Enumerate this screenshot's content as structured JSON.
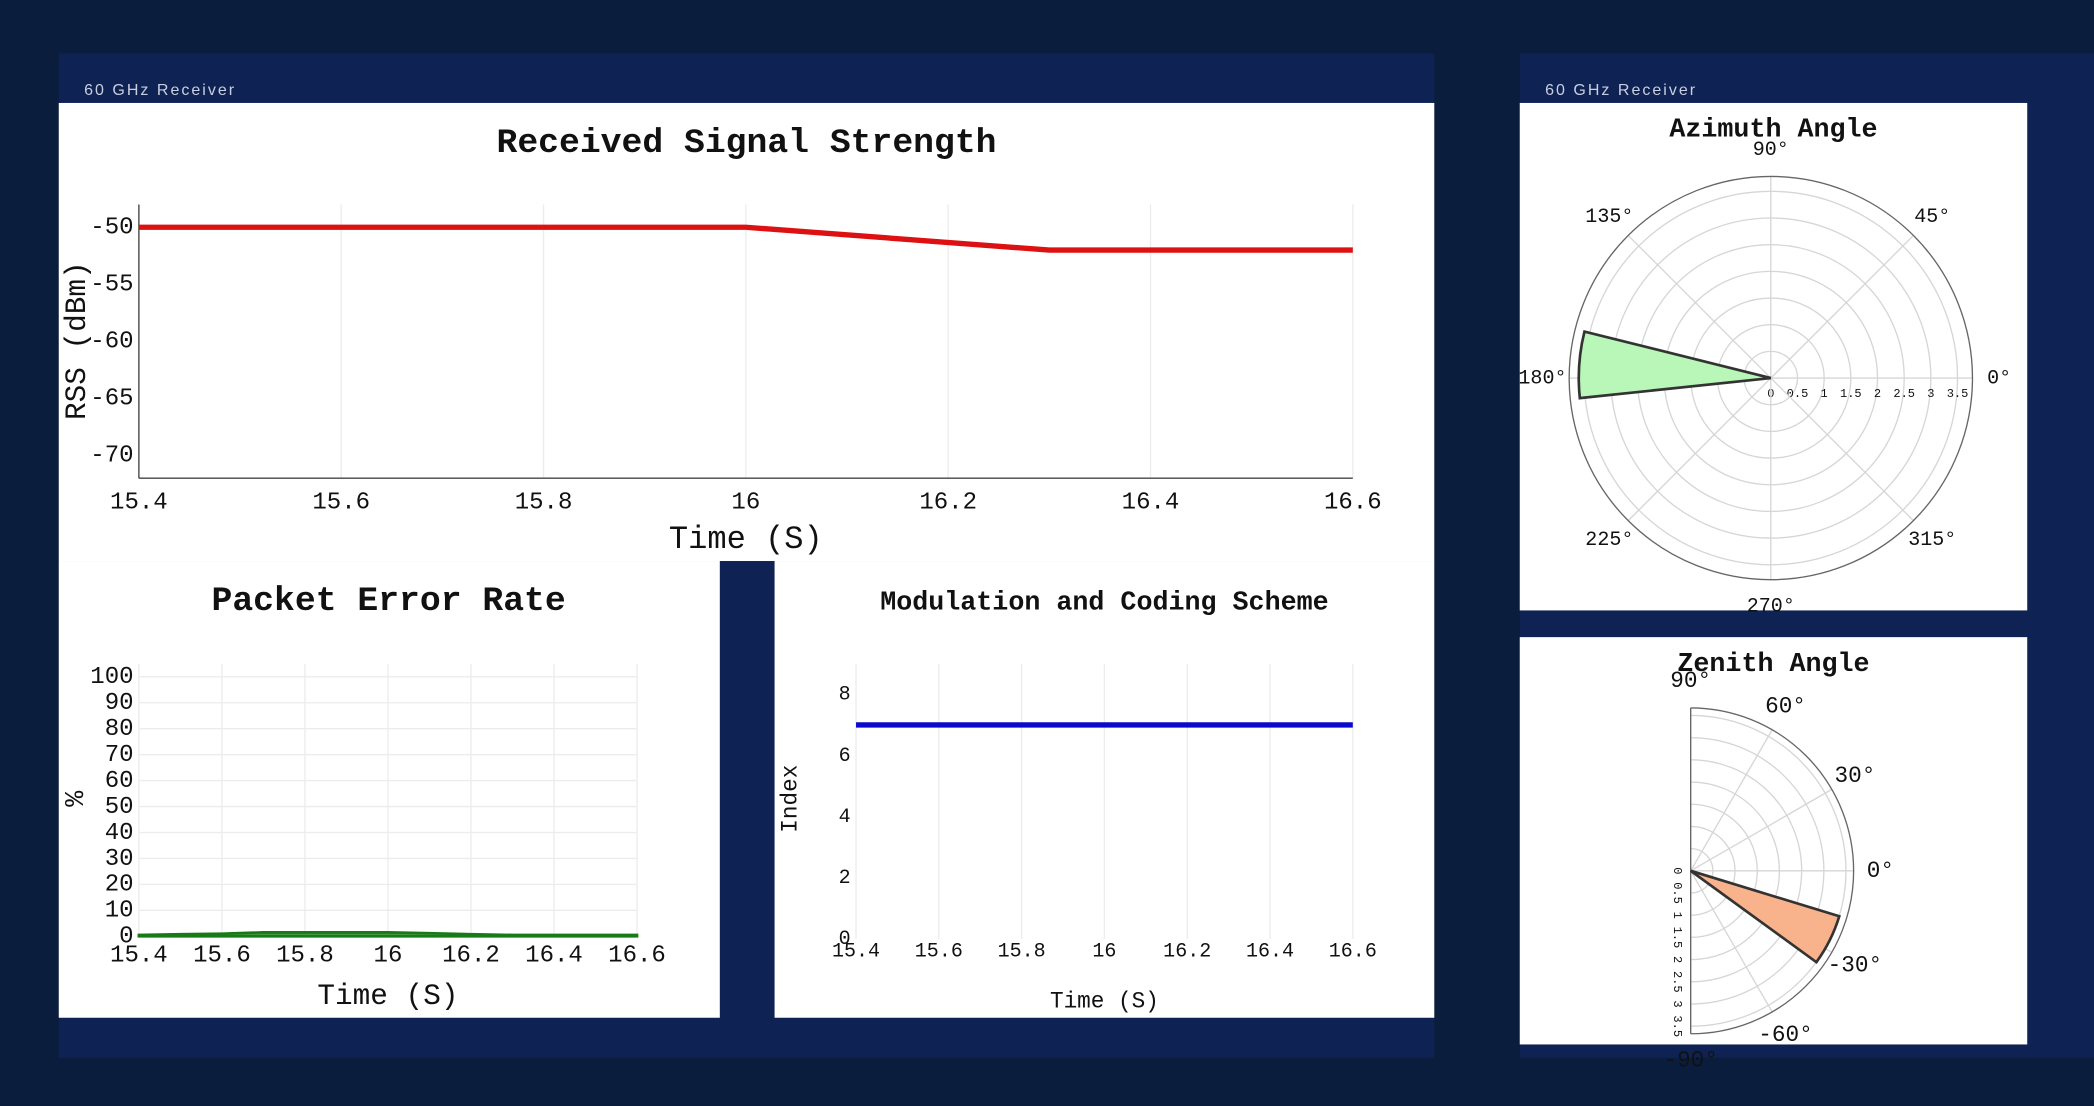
{
  "panels": [
    {
      "label": "60 GHz Receiver"
    },
    {
      "label": "60 GHz Receiver"
    }
  ],
  "chart_data": [
    {
      "type": "line",
      "title": "Received Signal Strength",
      "x_label": "Time (S)",
      "y_label": "RSS (dBm)",
      "x": [
        15.4,
        16.0,
        16.3,
        16.6
      ],
      "values": [
        -50,
        -50,
        -52,
        -52
      ],
      "color": "#dd1111",
      "xlim": [
        15.4,
        16.6
      ],
      "xticks": [
        15.4,
        15.6,
        15.8,
        16,
        16.2,
        16.4,
        16.6
      ],
      "ylim": [
        -72,
        -48
      ],
      "yticks": [
        -50,
        -55,
        -60,
        -65,
        -70
      ],
      "xgrid": true,
      "ygrid": false
    },
    {
      "type": "area",
      "title": "Packet Error Rate",
      "x_label": "Time (S)",
      "y_label": "%",
      "x": [
        15.4,
        15.5,
        15.6,
        15.7,
        15.8,
        15.9,
        16.0,
        16.1,
        16.2,
        16.3,
        16.4,
        16.5,
        16.6
      ],
      "values": [
        0.5,
        0.8,
        1.0,
        1.5,
        1.5,
        1.5,
        1.5,
        1.2,
        0.8,
        0.5,
        0.5,
        0.5,
        0.5
      ],
      "color": "#167a16",
      "xlim": [
        15.4,
        16.6
      ],
      "xticks": [
        15.4,
        15.6,
        15.8,
        16,
        16.2,
        16.4,
        16.6
      ],
      "ylim": [
        0,
        105
      ],
      "yticks": [
        0,
        10,
        20,
        30,
        40,
        50,
        60,
        70,
        80,
        90,
        100
      ],
      "xgrid": true,
      "ygrid": true
    },
    {
      "type": "line",
      "title": "Modulation and Coding Scheme",
      "x_label": "Time (S)",
      "y_label": "Index",
      "x": [
        15.4,
        16.6
      ],
      "values": [
        7,
        7
      ],
      "color": "#0a0acc",
      "xlim": [
        15.4,
        16.6
      ],
      "xticks": [
        15.4,
        15.6,
        15.8,
        16,
        16.2,
        16.4,
        16.6
      ],
      "ylim": [
        0,
        9
      ],
      "yticks": [
        0,
        2,
        4,
        6,
        8
      ],
      "xgrid": true,
      "ygrid": false
    },
    {
      "type": "polar",
      "title": "Azimuth Angle",
      "theta": [
        176
      ],
      "width": [
        20
      ],
      "r": [
        3.6
      ],
      "color": "#b9f7b9",
      "sector": [
        0,
        360
      ],
      "rlim": [
        0,
        3.78
      ],
      "rticks": [
        0,
        0.5,
        1,
        1.5,
        2,
        2.5,
        3,
        3.5
      ],
      "thetaticks": [
        {
          "value": 0,
          "label": "0°"
        },
        {
          "value": 45,
          "label": "45°"
        },
        {
          "value": 90,
          "label": "90°"
        },
        {
          "value": 135,
          "label": "135°"
        },
        {
          "value": 180,
          "label": "180°"
        },
        {
          "value": 225,
          "label": "225°"
        },
        {
          "value": 270,
          "label": "270°"
        },
        {
          "value": 315,
          "label": "315°"
        }
      ]
    },
    {
      "type": "polar",
      "title": "Zenith Angle",
      "theta": [
        -26.5
      ],
      "width": [
        19
      ],
      "r": [
        3.5
      ],
      "color": "#f8b38d",
      "sector": [
        -90,
        90
      ],
      "rlim": [
        0,
        3.67
      ],
      "rticks": [
        0,
        0.5,
        1,
        1.5,
        2,
        2.5,
        3,
        3.5
      ],
      "thetaticks": [
        {
          "value": -90,
          "label": "-90°"
        },
        {
          "value": -60,
          "label": "-60°"
        },
        {
          "value": -30,
          "label": "-30°"
        },
        {
          "value": 0,
          "label": "0°"
        },
        {
          "value": 30,
          "label": "30°"
        },
        {
          "value": 60,
          "label": "60°"
        },
        {
          "value": 90,
          "label": "90°"
        }
      ]
    }
  ]
}
